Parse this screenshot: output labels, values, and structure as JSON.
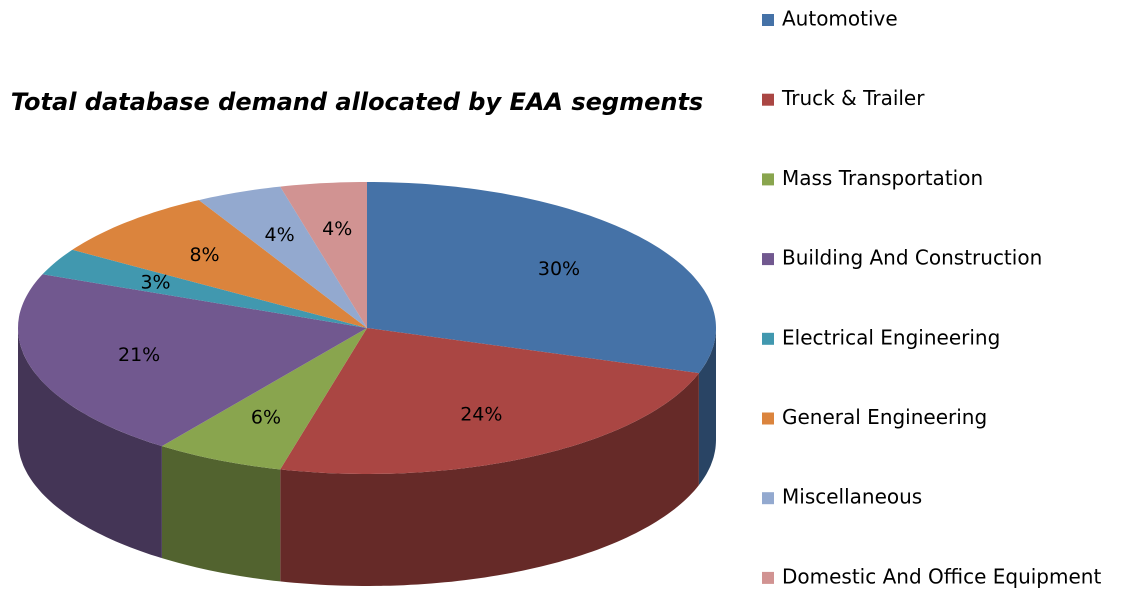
{
  "chart_data": {
    "type": "pie3d",
    "title": "Total database demand allocated by EAA segments",
    "categories": [
      "Automotive",
      "Truck & Trailer",
      "Mass Transportation",
      "Building And Construction",
      "Electrical Engineering",
      "General Engineering",
      "Miscellaneous",
      "Domestic And Office Equipment"
    ],
    "values": [
      30,
      24,
      6,
      21,
      3,
      8,
      4,
      4
    ],
    "value_labels": [
      "30%",
      "24%",
      "6%",
      "21%",
      "3%",
      "8%",
      "4%",
      "4%"
    ],
    "colors": [
      "#4572a7",
      "#aa4643",
      "#89a54e",
      "#71588f",
      "#4198af",
      "#db843d",
      "#93a9cf",
      "#d19392"
    ],
    "legend": "right"
  }
}
